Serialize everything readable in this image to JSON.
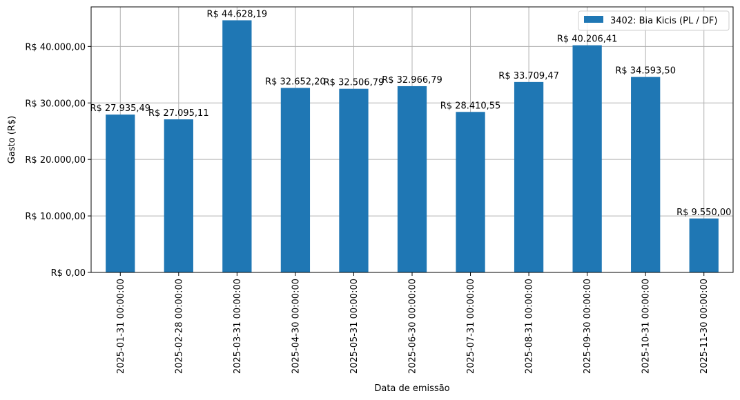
{
  "chart_data": {
    "type": "bar",
    "xlabel": "Data de emissão",
    "ylabel": "Gasto (R$)",
    "ylim": [
      0,
      47000
    ],
    "grid": true,
    "legend_placement": "top-right",
    "y_ticks": [
      0,
      10000,
      20000,
      30000,
      40000
    ],
    "y_tick_labels": [
      "R$ 0,00",
      "R$ 10.000,00",
      "R$ 20.000,00",
      "R$ 30.000,00",
      "R$ 40.000,00"
    ],
    "categories": [
      "2025-01-31 00:00:00",
      "2025-02-28 00:00:00",
      "2025-03-31 00:00:00",
      "2025-04-30 00:00:00",
      "2025-05-31 00:00:00",
      "2025-06-30 00:00:00",
      "2025-07-31 00:00:00",
      "2025-08-31 00:00:00",
      "2025-09-30 00:00:00",
      "2025-10-31 00:00:00",
      "2025-11-30 00:00:00"
    ],
    "series": [
      {
        "name": "3402: Bia Kicis (PL / DF)",
        "color": "#1f77b4",
        "values": [
          27935.49,
          27095.11,
          44628.19,
          32652.2,
          32506.79,
          32966.79,
          28410.55,
          33709.47,
          40206.41,
          34593.5,
          9550.0
        ],
        "labels": [
          "R$ 27.935,49",
          "R$ 27.095,11",
          "R$ 44.628,19",
          "R$ 32.652,20",
          "R$ 32.506,79",
          "R$ 32.966,79",
          "R$ 28.410,55",
          "R$ 33.709,47",
          "R$ 40.206,41",
          "R$ 34.593,50",
          "R$ 9.550,00"
        ]
      }
    ]
  }
}
